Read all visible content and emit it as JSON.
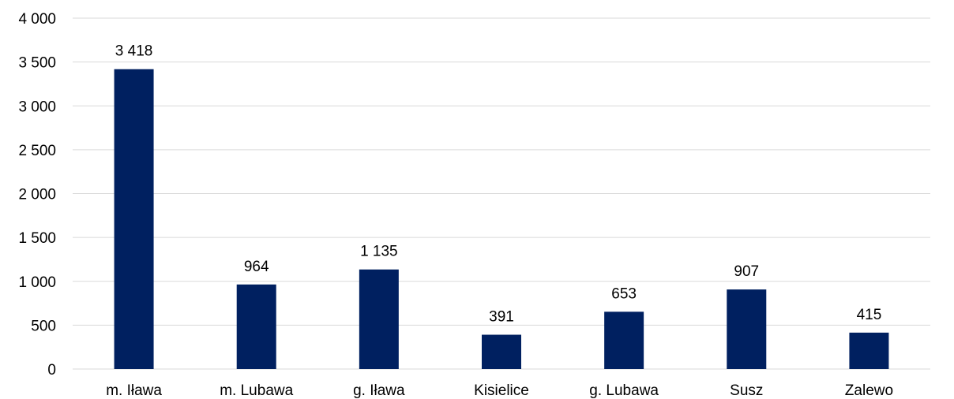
{
  "chart_data": {
    "type": "bar",
    "title": "",
    "xlabel": "",
    "ylabel": "",
    "categories": [
      "m. Iława",
      "m. Lubawa",
      "g. Iława",
      "Kisielice",
      "g. Lubawa",
      "Susz",
      "Zalewo"
    ],
    "values": [
      3418,
      964,
      1135,
      391,
      653,
      907,
      415
    ],
    "value_labels": [
      "3 418",
      "964",
      "1 135",
      "391",
      "653",
      "907",
      "415"
    ],
    "ylim": [
      0,
      4000
    ],
    "yticks": [
      0,
      500,
      1000,
      1500,
      2000,
      2500,
      3000,
      3500,
      4000
    ],
    "ytick_labels": [
      "0",
      "500",
      "1 000",
      "1 500",
      "2 000",
      "2 500",
      "3 000",
      "3 500",
      "4 000"
    ],
    "grid": true,
    "legend": "none",
    "bar_color": "#002060"
  }
}
